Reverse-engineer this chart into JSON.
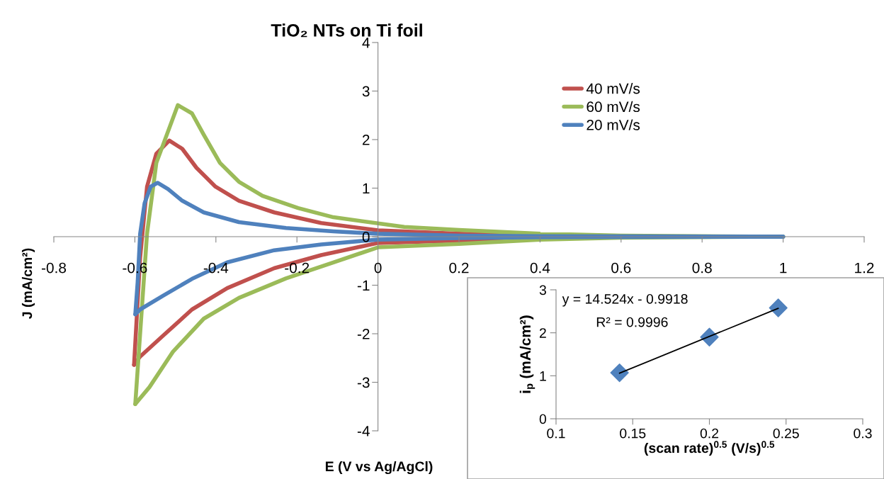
{
  "chart_data": [
    {
      "type": "line",
      "title": "TiO₂ NTs on Ti foil",
      "xlabel": "E (V vs Ag/AgCl)",
      "ylabel": "J (mA/cm²)",
      "xlim": [
        -0.8,
        1.2
      ],
      "xticks": [
        -0.8,
        -0.6,
        -0.4,
        -0.2,
        0,
        0.2,
        0.4,
        0.6,
        0.8,
        1,
        1.2
      ],
      "ylim": [
        -4,
        4
      ],
      "yticks": [
        -4,
        -3,
        -2,
        -1,
        0,
        1,
        2,
        3,
        4
      ],
      "grid": false,
      "legend": "top right",
      "marker": "none",
      "line_style": "solid",
      "series": [
        {
          "name": "40 mV/s",
          "color": "#c0504d",
          "x": [
            -0.602,
            -0.587,
            -0.57,
            -0.547,
            -0.515,
            -0.483,
            -0.448,
            -0.401,
            -0.343,
            -0.256,
            -0.14,
            0,
            0.2,
            0.4
          ],
          "values": [
            -2.64,
            -0.43,
            1.03,
            1.71,
            1.98,
            1.81,
            1.42,
            1.03,
            0.74,
            0.5,
            0.28,
            0.13,
            0.06,
            0.02
          ]
        },
        {
          "color": "#c0504d",
          "x": [
            0.4,
            0.2,
            0,
            -0.14,
            -0.256,
            -0.372,
            -0.459,
            -0.529,
            -0.587,
            -0.602
          ],
          "values": [
            -0.03,
            -0.08,
            -0.13,
            -0.38,
            -0.65,
            -1.06,
            -1.5,
            -2.03,
            -2.47,
            -2.64
          ]
        },
        {
          "name": "60 mV/s",
          "color": "#9bbb59",
          "x": [
            -0.599,
            -0.57,
            -0.547,
            -0.494,
            -0.459,
            -0.43,
            -0.39,
            -0.343,
            -0.285,
            -0.197,
            -0.11,
            0.065,
            0.2,
            0.4,
            0.6,
            1
          ],
          "values": [
            -3.45,
            0.06,
            1.52,
            2.71,
            2.54,
            2.1,
            1.52,
            1.13,
            0.84,
            0.59,
            0.4,
            0.2,
            0.14,
            0.06,
            0.02,
            0
          ]
        },
        {
          "color": "#9bbb59",
          "x": [
            1,
            0.6,
            0.4,
            0.2,
            0,
            -0.11,
            -0.227,
            -0.343,
            -0.43,
            -0.506,
            -0.564,
            -0.599
          ],
          "values": [
            0,
            -0.02,
            -0.06,
            -0.15,
            -0.22,
            -0.53,
            -0.86,
            -1.26,
            -1.69,
            -2.37,
            -3.1,
            -3.45
          ]
        },
        {
          "name": "20 mV/s",
          "color": "#4f81bd",
          "x": [
            -0.599,
            -0.593,
            -0.587,
            -0.576,
            -0.561,
            -0.544,
            -0.518,
            -0.483,
            -0.43,
            -0.343,
            -0.227,
            -0.11,
            0,
            0.2,
            0.4,
            1
          ],
          "values": [
            -1.6,
            -0.92,
            0.06,
            0.69,
            1.03,
            1.11,
            0.98,
            0.74,
            0.5,
            0.3,
            0.18,
            0.11,
            0.06,
            0.02,
            0.01,
            0
          ]
        },
        {
          "color": "#4f81bd",
          "x": [
            1,
            0.4,
            0.2,
            0,
            -0.14,
            -0.256,
            -0.372,
            -0.459,
            -0.529,
            -0.587,
            -0.599
          ],
          "values": [
            0,
            -0.01,
            -0.03,
            -0.06,
            -0.16,
            -0.28,
            -0.53,
            -0.87,
            -1.21,
            -1.5,
            -1.6
          ]
        }
      ]
    },
    {
      "type": "scatter",
      "xlabel": "(scan rate)$^{0.5}$ (V/s)$^{0.5}$",
      "ylabel": "i$_{p}$ (mA/cm²)",
      "xlim": [
        0.1,
        0.3
      ],
      "xticks": [
        0.1,
        0.15,
        0.2,
        0.25,
        0.3
      ],
      "ylim": [
        0,
        3
      ],
      "yticks": [
        0,
        1,
        2,
        3
      ],
      "grid": false,
      "legend": false,
      "annotations": [
        "y = 14.524x - 0.9918",
        "R² = 0.9996"
      ],
      "series": [
        {
          "type": "scatter",
          "color": "#4f81bd",
          "marker": "diamond",
          "x": [
            0.1414,
            0.2,
            0.2449
          ],
          "values": [
            1.07,
            1.9,
            2.58
          ]
        },
        {
          "type": "line",
          "color": "#000000",
          "marker": "none",
          "x": [
            0.1414,
            0.2449
          ],
          "values": [
            1.06,
            2.57
          ]
        }
      ]
    }
  ]
}
